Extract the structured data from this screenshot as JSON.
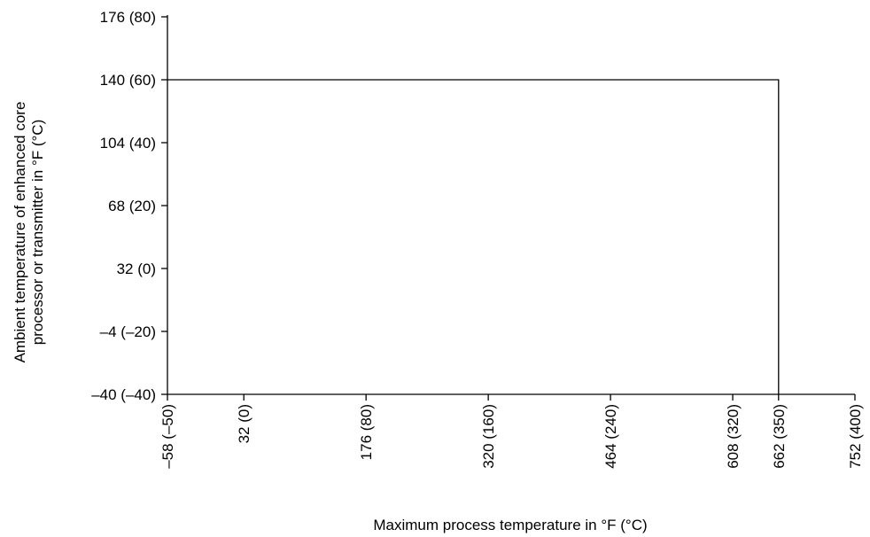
{
  "chart_data": {
    "type": "line",
    "title": "",
    "xlabel": "Maximum process temperature in °F (°C)",
    "ylabel_lines": [
      "Ambient temperature of enhanced core",
      "processor or transmitter in °F (°C)"
    ],
    "x_unit": "°C",
    "y_unit": "°C",
    "xlim": [
      -50,
      400
    ],
    "ylim": [
      -40,
      80
    ],
    "x_ticks": [
      {
        "value": -50,
        "label": "–58 (–50)"
      },
      {
        "value": 0,
        "label": "32 (0)"
      },
      {
        "value": 80,
        "label": "176 (80)"
      },
      {
        "value": 160,
        "label": "320 (160)"
      },
      {
        "value": 240,
        "label": "464 (240)"
      },
      {
        "value": 320,
        "label": "608 (320)"
      },
      {
        "value": 350,
        "label": "662 (350)"
      },
      {
        "value": 400,
        "label": "752 (400)"
      }
    ],
    "y_ticks": [
      {
        "value": -40,
        "label": "–40 (–40)"
      },
      {
        "value": -20,
        "label": "–4 (–20)"
      },
      {
        "value": 0,
        "label": "32 (0)"
      },
      {
        "value": 20,
        "label": "68 (20)"
      },
      {
        "value": 40,
        "label": "104 (40)"
      },
      {
        "value": 60,
        "label": "140 (60)"
      },
      {
        "value": 80,
        "label": "176 (80)"
      }
    ],
    "series": [
      {
        "x": [
          -50,
          350,
          350
        ],
        "y": [
          60,
          60,
          -40
        ],
        "color": "#000000"
      }
    ],
    "grid": false,
    "legend": "none",
    "axis_color": "#000000"
  }
}
